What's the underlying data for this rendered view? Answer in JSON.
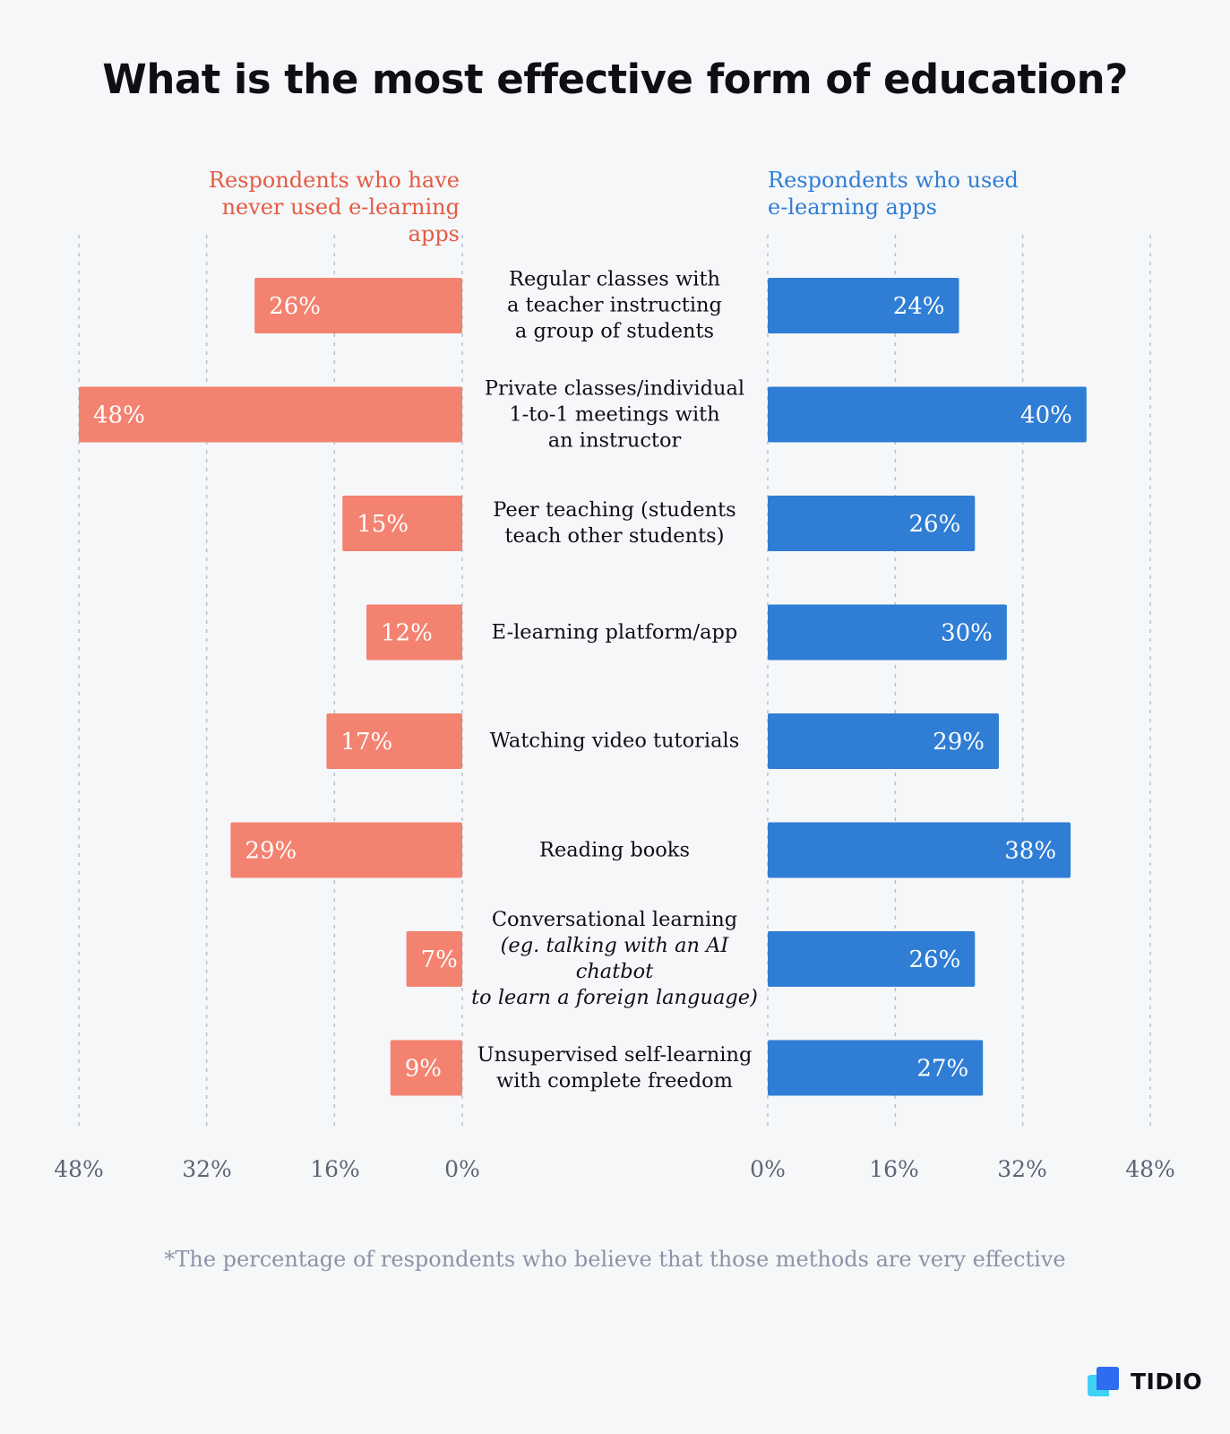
{
  "title": "What is the most effective form of education?",
  "footnote": "*The percentage of respondents who believe that those methods are very effective",
  "brand": {
    "name": "TIDIO"
  },
  "colors": {
    "left": "#f38270",
    "right": "#2f7dd4",
    "left_text": "#e55a43",
    "right_text": "#2f7dd4"
  },
  "chart_data": {
    "type": "bar",
    "orientation": "horizontal-butterfly",
    "categories": [
      [
        "Regular classes with",
        "a teacher  instructing",
        "a group of students"
      ],
      [
        "Private classes/individual",
        "1-to-1 meetings with",
        "an instructor"
      ],
      [
        "Peer teaching (students",
        "teach other students)"
      ],
      [
        "E-learning platform/app"
      ],
      [
        "Watching video tutorials"
      ],
      [
        "Reading books"
      ],
      [
        "Conversational learning",
        "(eg. talking with an AI chatbot",
        "to learn a foreign language)"
      ],
      [
        "Unsupervised self-learning",
        "with complete freedom"
      ]
    ],
    "italic_lines": [
      [],
      [],
      [],
      [],
      [],
      [],
      [
        1,
        2
      ],
      []
    ],
    "series": [
      {
        "name": "Respondents who have never used e-learning apps",
        "display": [
          "Respondents who have",
          "never used e-learning apps"
        ],
        "values": [
          26,
          48,
          15,
          12,
          17,
          29,
          7,
          9
        ]
      },
      {
        "name": "Respondents who used e-learning apps",
        "display": [
          "Respondents who used",
          "e-learning apps"
        ],
        "values": [
          24,
          40,
          26,
          30,
          29,
          38,
          26,
          27
        ]
      }
    ],
    "left_ticks": [
      "48%",
      "32%",
      "16%",
      "0%"
    ],
    "right_ticks": [
      "0%",
      "16%",
      "32%",
      "48%"
    ],
    "xlim": [
      0,
      48
    ],
    "unit": "%",
    "grid": true
  }
}
